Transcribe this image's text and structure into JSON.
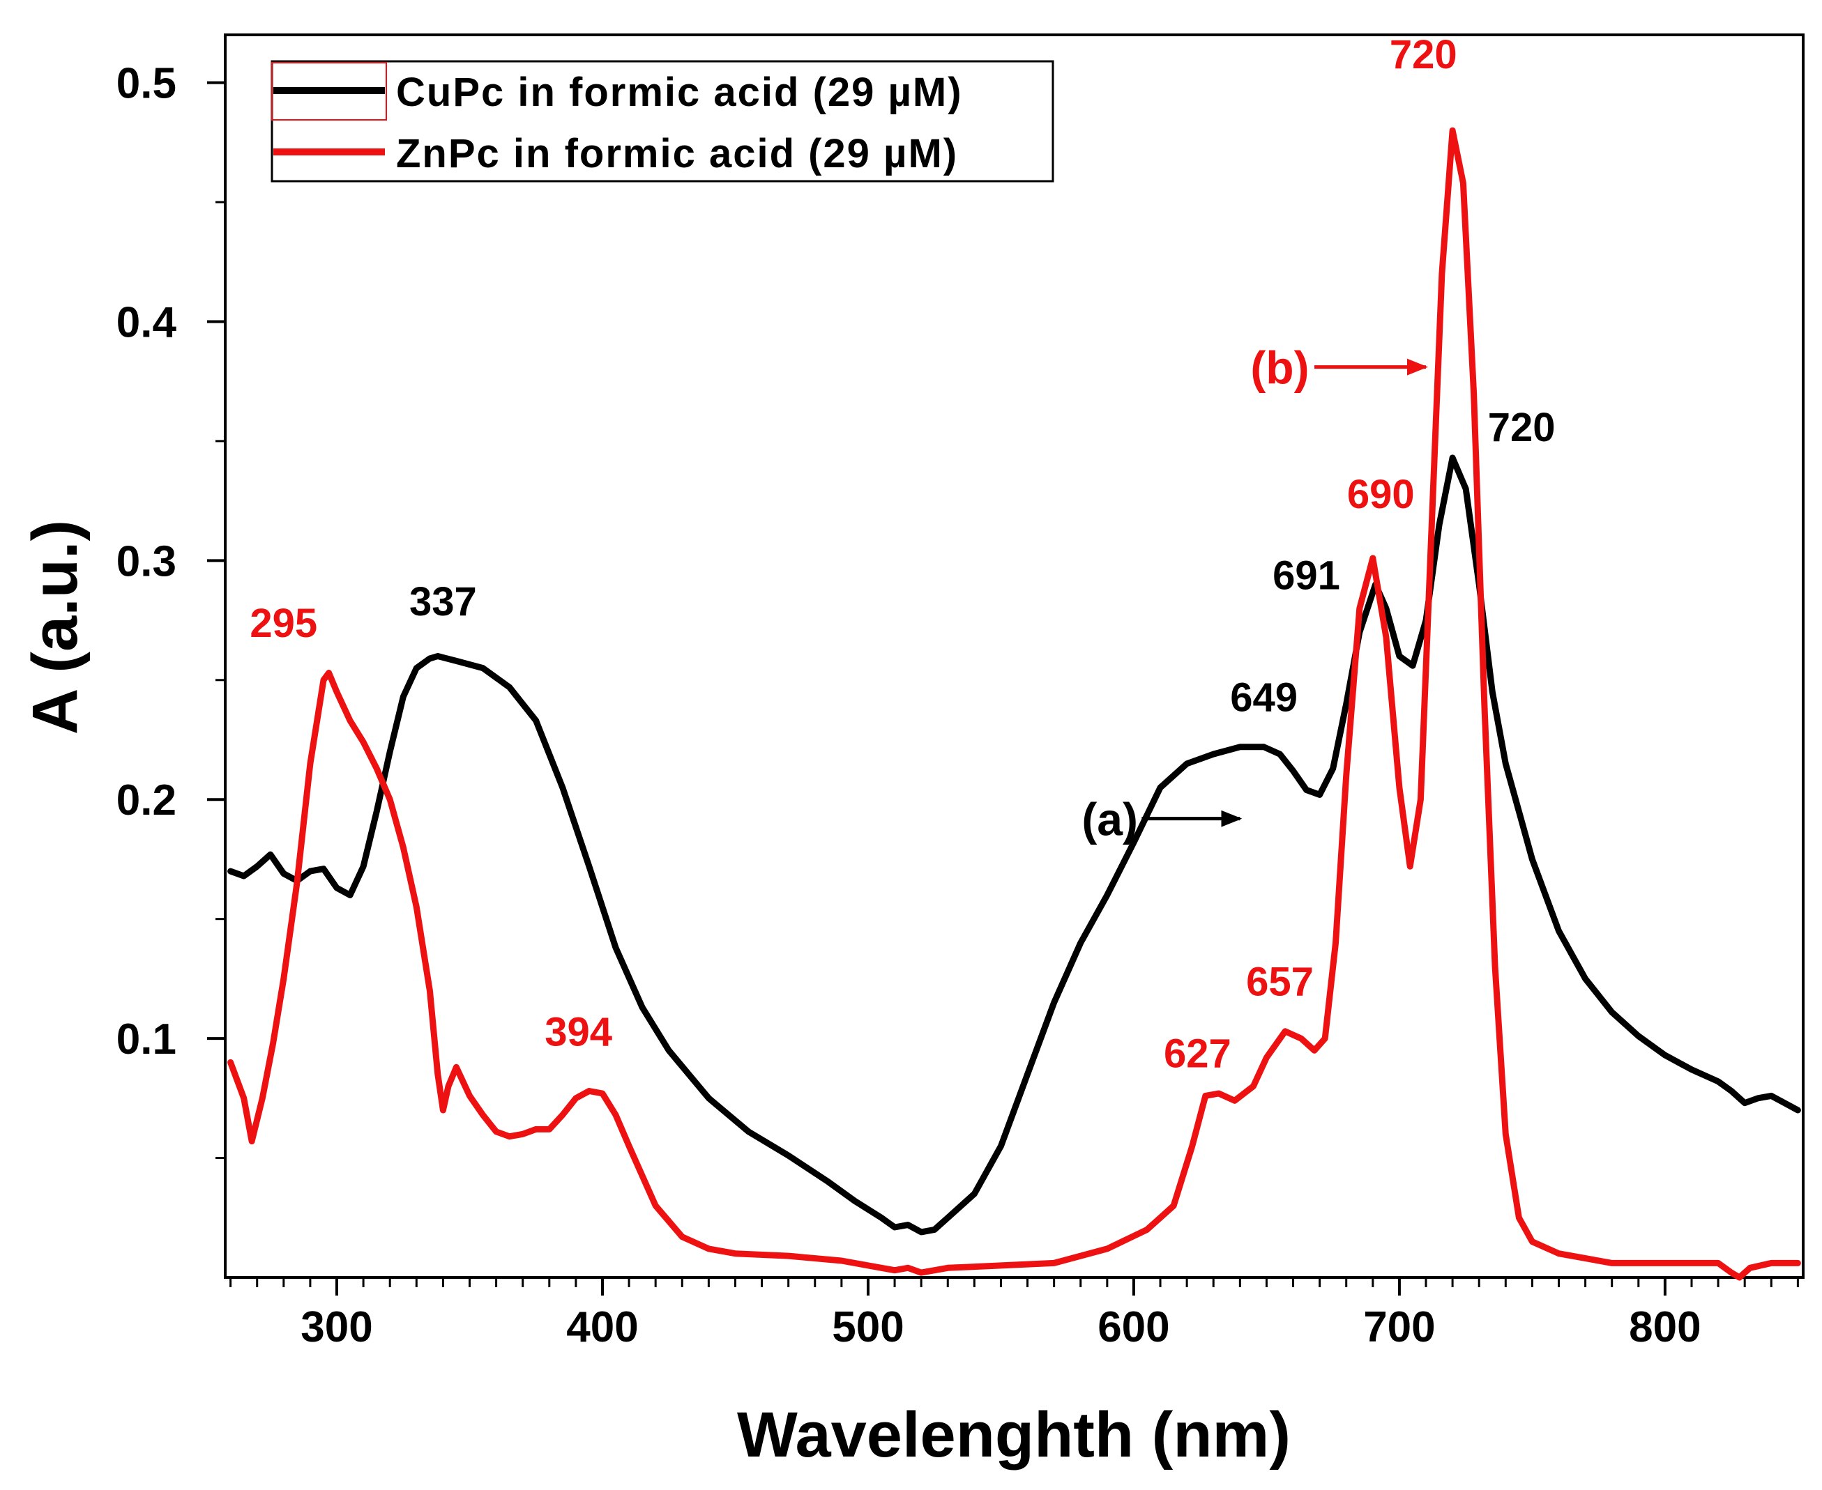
{
  "colors": {
    "cupc": "#000000",
    "znpc": "#ee1111",
    "axis": "#000000"
  },
  "chart_data": {
    "type": "line",
    "title": "",
    "xlabel": "Wavelenghth (nm)",
    "ylabel": "A (a.u.)",
    "xlim": [
      258,
      852
    ],
    "ylim": [
      0,
      0.52
    ],
    "xticks": [
      300,
      400,
      500,
      600,
      700,
      800
    ],
    "xtick_labels": [
      "300",
      "400",
      "500",
      "600",
      "700",
      "800"
    ],
    "xminor_step": 10,
    "yticks": [
      0.1,
      0.2,
      0.3,
      0.4,
      0.5
    ],
    "ytick_labels": [
      "0.1",
      "0.2",
      "0.3",
      "0.4",
      "0.5"
    ],
    "yminor_step": 0.05,
    "legend_position": "top-left",
    "series": [
      {
        "name": "CuPc in formic acid (29 µM)",
        "color": "#000000",
        "x": [
          260,
          265,
          270,
          275,
          280,
          285,
          290,
          295,
          300,
          305,
          310,
          315,
          320,
          325,
          330,
          335,
          338,
          345,
          355,
          365,
          375,
          385,
          395,
          405,
          415,
          425,
          440,
          455,
          470,
          485,
          495,
          505,
          510,
          515,
          520,
          525,
          530,
          540,
          550,
          560,
          570,
          580,
          590,
          600,
          610,
          620,
          630,
          640,
          649,
          655,
          660,
          665,
          670,
          675,
          680,
          685,
          691,
          695,
          700,
          705,
          710,
          715,
          720,
          725,
          730,
          735,
          740,
          745,
          750,
          760,
          770,
          780,
          790,
          800,
          810,
          820,
          825,
          830,
          835,
          840,
          845,
          850
        ],
        "y": [
          0.17,
          0.168,
          0.172,
          0.177,
          0.169,
          0.166,
          0.17,
          0.171,
          0.163,
          0.16,
          0.172,
          0.195,
          0.22,
          0.243,
          0.255,
          0.259,
          0.26,
          0.258,
          0.255,
          0.247,
          0.233,
          0.205,
          0.172,
          0.138,
          0.113,
          0.095,
          0.075,
          0.061,
          0.051,
          0.04,
          0.032,
          0.025,
          0.021,
          0.022,
          0.019,
          0.02,
          0.025,
          0.035,
          0.055,
          0.085,
          0.115,
          0.14,
          0.16,
          0.182,
          0.205,
          0.215,
          0.219,
          0.222,
          0.222,
          0.219,
          0.212,
          0.204,
          0.202,
          0.213,
          0.24,
          0.27,
          0.29,
          0.28,
          0.26,
          0.256,
          0.275,
          0.315,
          0.343,
          0.33,
          0.29,
          0.245,
          0.215,
          0.195,
          0.175,
          0.145,
          0.125,
          0.111,
          0.101,
          0.093,
          0.087,
          0.082,
          0.078,
          0.073,
          0.075,
          0.076,
          0.073,
          0.07
        ]
      },
      {
        "name": "ZnPc in formic acid (29 µM)",
        "color": "#ee1111",
        "x": [
          260,
          265,
          268,
          272,
          276,
          280,
          285,
          290,
          295,
          297,
          300,
          305,
          310,
          315,
          320,
          325,
          330,
          335,
          338,
          340,
          342,
          345,
          350,
          355,
          360,
          365,
          370,
          375,
          380,
          385,
          390,
          395,
          400,
          405,
          410,
          420,
          430,
          440,
          450,
          470,
          490,
          505,
          510,
          515,
          520,
          530,
          550,
          570,
          590,
          605,
          615,
          622,
          627,
          632,
          638,
          645,
          650,
          657,
          663,
          668,
          672,
          676,
          680,
          685,
          690,
          695,
          700,
          704,
          708,
          712,
          716,
          720,
          724,
          728,
          732,
          736,
          740,
          745,
          750,
          760,
          780,
          800,
          820,
          825,
          828,
          832,
          840,
          850
        ],
        "y": [
          0.09,
          0.075,
          0.057,
          0.075,
          0.098,
          0.125,
          0.165,
          0.215,
          0.25,
          0.253,
          0.245,
          0.233,
          0.224,
          0.213,
          0.2,
          0.18,
          0.155,
          0.12,
          0.085,
          0.07,
          0.08,
          0.088,
          0.076,
          0.068,
          0.061,
          0.059,
          0.06,
          0.062,
          0.062,
          0.068,
          0.075,
          0.078,
          0.077,
          0.068,
          0.055,
          0.03,
          0.017,
          0.012,
          0.01,
          0.009,
          0.007,
          0.004,
          0.003,
          0.004,
          0.002,
          0.004,
          0.005,
          0.006,
          0.012,
          0.02,
          0.03,
          0.055,
          0.076,
          0.077,
          0.074,
          0.08,
          0.092,
          0.103,
          0.1,
          0.095,
          0.1,
          0.14,
          0.21,
          0.28,
          0.301,
          0.268,
          0.205,
          0.172,
          0.2,
          0.31,
          0.42,
          0.48,
          0.458,
          0.37,
          0.24,
          0.13,
          0.06,
          0.025,
          0.015,
          0.01,
          0.006,
          0.006,
          0.006,
          0.002,
          0.0,
          0.004,
          0.006,
          0.006
        ]
      }
    ],
    "annotations": [
      {
        "text": "295",
        "x": 280,
        "y": 0.268,
        "series": 1
      },
      {
        "text": "337",
        "x": 340,
        "y": 0.277,
        "series": 0
      },
      {
        "text": "394",
        "x": 391,
        "y": 0.097,
        "series": 1
      },
      {
        "text": "627",
        "x": 624,
        "y": 0.088,
        "series": 1
      },
      {
        "text": "657",
        "x": 655,
        "y": 0.118,
        "series": 1
      },
      {
        "text": "649",
        "x": 649,
        "y": 0.237,
        "series": 0
      },
      {
        "text": "691",
        "x": 665,
        "y": 0.288,
        "series": 0
      },
      {
        "text": "690",
        "x": 693,
        "y": 0.322,
        "series": 1
      },
      {
        "text": "720",
        "x": 746,
        "y": 0.35,
        "series": 0
      },
      {
        "text": "720",
        "x": 709,
        "y": 0.506,
        "series": 1
      }
    ],
    "series_markers": [
      {
        "text": "(a)",
        "series": 0,
        "label_x": 591,
        "label_y": 0.192,
        "arrow_from": 603,
        "arrow_to": 640
      },
      {
        "text": "(b)",
        "series": 1,
        "label_x": 655,
        "label_y": 0.381,
        "arrow_from": 668,
        "arrow_to": 710
      }
    ]
  }
}
